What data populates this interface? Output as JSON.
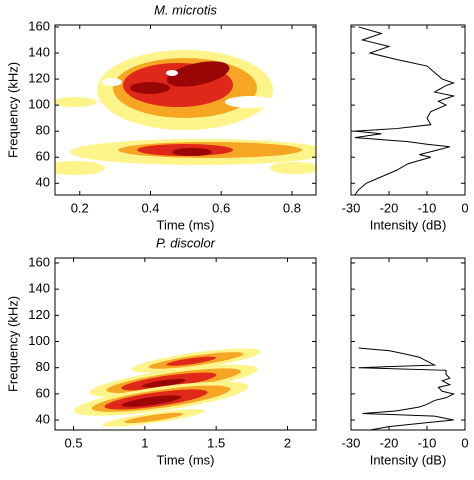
{
  "chart_data": [
    {
      "type": "heatmap",
      "title": "M. microtis",
      "xlabel": "Time (ms)",
      "ylabel": "Frequency (kHz)",
      "xlim": [
        0.13,
        0.868
      ],
      "ylim": [
        31,
        161.5
      ],
      "xticks": [
        0.2,
        0.4,
        0.6,
        0.8
      ],
      "yticks": [
        40,
        60,
        80,
        100,
        120,
        140,
        160
      ]
    },
    {
      "type": "line",
      "xlabel": "Intensity (dB)",
      "xlim": [
        -30,
        0
      ],
      "ylim": [
        31,
        161.5
      ],
      "xticks": [
        -30,
        -20,
        -10,
        0
      ],
      "yticks": [
        40,
        60,
        80,
        100,
        120,
        140,
        160
      ],
      "color": "#000000",
      "frequencies": [
        160,
        155,
        150,
        145,
        140,
        135,
        130,
        125,
        120,
        117,
        115,
        110,
        107,
        103,
        100,
        95,
        90,
        85,
        82,
        80,
        78,
        75,
        72,
        70,
        68,
        65,
        62,
        60,
        55,
        50,
        45,
        40,
        35,
        31
      ],
      "values": [
        -28,
        -22,
        -27,
        -20,
        -25,
        -18,
        -10,
        -8,
        -6,
        -3,
        -5,
        -8,
        -3,
        -7,
        -5,
        -9,
        -10,
        -9,
        -18,
        -29,
        -22,
        -29,
        -15,
        -10,
        -4,
        -8,
        -12,
        -9,
        -15,
        -18,
        -22,
        -26,
        -28,
        -29
      ]
    },
    {
      "type": "heatmap",
      "title": "P. discolor",
      "xlabel": "Time (ms)",
      "ylabel": "Frequency (kHz)",
      "xlim": [
        0.37,
        2.2
      ],
      "ylim": [
        32.4,
        163.8
      ],
      "xticks": [
        0.5,
        1,
        1.5,
        2
      ],
      "yticks": [
        40,
        60,
        80,
        100,
        120,
        140,
        160
      ]
    },
    {
      "type": "line",
      "xlabel": "Intensity (dB)",
      "xlim": [
        -30,
        0
      ],
      "ylim": [
        32.4,
        163.8
      ],
      "xticks": [
        -30,
        -20,
        -10,
        0
      ],
      "yticks": [
        40,
        60,
        80,
        100,
        120,
        140,
        160
      ],
      "color": "#000000",
      "frequencies": [
        95,
        93,
        90,
        88,
        85,
        82,
        80,
        78,
        75,
        72,
        70,
        67,
        65,
        62,
        60,
        57,
        55,
        52,
        50,
        47,
        45,
        43,
        40,
        38,
        35,
        32.4
      ],
      "values": [
        -28,
        -20,
        -15,
        -12,
        -10,
        -8,
        -28,
        -5,
        -5,
        -4,
        -6,
        -4,
        -7,
        -6,
        -3,
        -5,
        -8,
        -10,
        -12,
        -18,
        -27,
        -8,
        -3,
        -10,
        -20,
        -25
      ]
    }
  ]
}
